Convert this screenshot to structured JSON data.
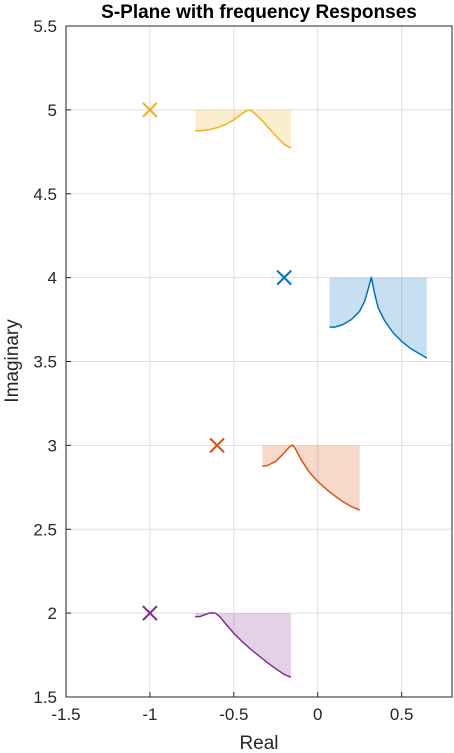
{
  "chart_data": {
    "type": "scatter",
    "title": "S-Plane with frequency Responses",
    "xlabel": "Real",
    "ylabel": "Imaginary",
    "xlim": [
      -1.5,
      0.8
    ],
    "ylim": [
      1.5,
      5.5
    ],
    "xticks": [
      -1.5,
      -1,
      -0.5,
      0,
      0.5
    ],
    "xtick_labels": [
      "-1.5",
      "-1",
      "-0.5",
      "0",
      "0.5"
    ],
    "yticks": [
      1.5,
      2,
      2.5,
      3,
      3.5,
      4,
      4.5,
      5,
      5.5
    ],
    "ytick_labels": [
      "1.5",
      "2",
      "2.5",
      "3",
      "3.5",
      "4",
      "4.5",
      "5",
      "5.5"
    ],
    "grid": true,
    "poles": [
      {
        "x": -1.0,
        "y": 5.0,
        "color": "#EDB120"
      },
      {
        "x": -0.2,
        "y": 4.0,
        "color": "#0072BD"
      },
      {
        "x": -0.6,
        "y": 3.0,
        "color": "#D95319"
      },
      {
        "x": -1.0,
        "y": 2.0,
        "color": "#7E2F8E"
      }
    ],
    "responses": [
      {
        "color": "#EDB120",
        "baseline": 5.0,
        "x": [
          -0.73,
          -0.7,
          -0.65,
          -0.6,
          -0.55,
          -0.5,
          -0.45,
          -0.42,
          -0.4,
          -0.37,
          -0.33,
          -0.3,
          -0.25,
          -0.2,
          -0.16
        ],
        "y": [
          4.875,
          4.875,
          4.882,
          4.893,
          4.912,
          4.94,
          4.978,
          4.996,
          4.998,
          4.975,
          4.935,
          4.9,
          4.845,
          4.795,
          4.772
        ]
      },
      {
        "color": "#0072BD",
        "baseline": 4.0,
        "x": [
          0.07,
          0.1,
          0.15,
          0.2,
          0.25,
          0.28,
          0.3,
          0.32,
          0.34,
          0.36,
          0.4,
          0.45,
          0.5,
          0.55,
          0.6,
          0.65
        ],
        "y": [
          3.705,
          3.705,
          3.72,
          3.75,
          3.8,
          3.86,
          3.93,
          4.002,
          3.9,
          3.82,
          3.74,
          3.67,
          3.62,
          3.58,
          3.55,
          3.52
        ]
      },
      {
        "color": "#D95319",
        "baseline": 3.0,
        "x": [
          -0.33,
          -0.3,
          -0.25,
          -0.2,
          -0.17,
          -0.15,
          -0.13,
          -0.1,
          -0.05,
          0.0,
          0.05,
          0.1,
          0.15,
          0.2,
          0.25
        ],
        "y": [
          2.875,
          2.88,
          2.905,
          2.955,
          2.99,
          3.002,
          2.975,
          2.915,
          2.84,
          2.785,
          2.74,
          2.7,
          2.665,
          2.635,
          2.615
        ]
      },
      {
        "color": "#7E2F8E",
        "baseline": 2.0,
        "x": [
          -0.73,
          -0.7,
          -0.67,
          -0.64,
          -0.61,
          -0.58,
          -0.55,
          -0.5,
          -0.45,
          -0.4,
          -0.35,
          -0.3,
          -0.25,
          -0.2,
          -0.16
        ],
        "y": [
          1.978,
          1.98,
          1.992,
          2.002,
          2.0,
          1.975,
          1.938,
          1.88,
          1.83,
          1.785,
          1.745,
          1.705,
          1.668,
          1.635,
          1.618
        ]
      }
    ]
  }
}
